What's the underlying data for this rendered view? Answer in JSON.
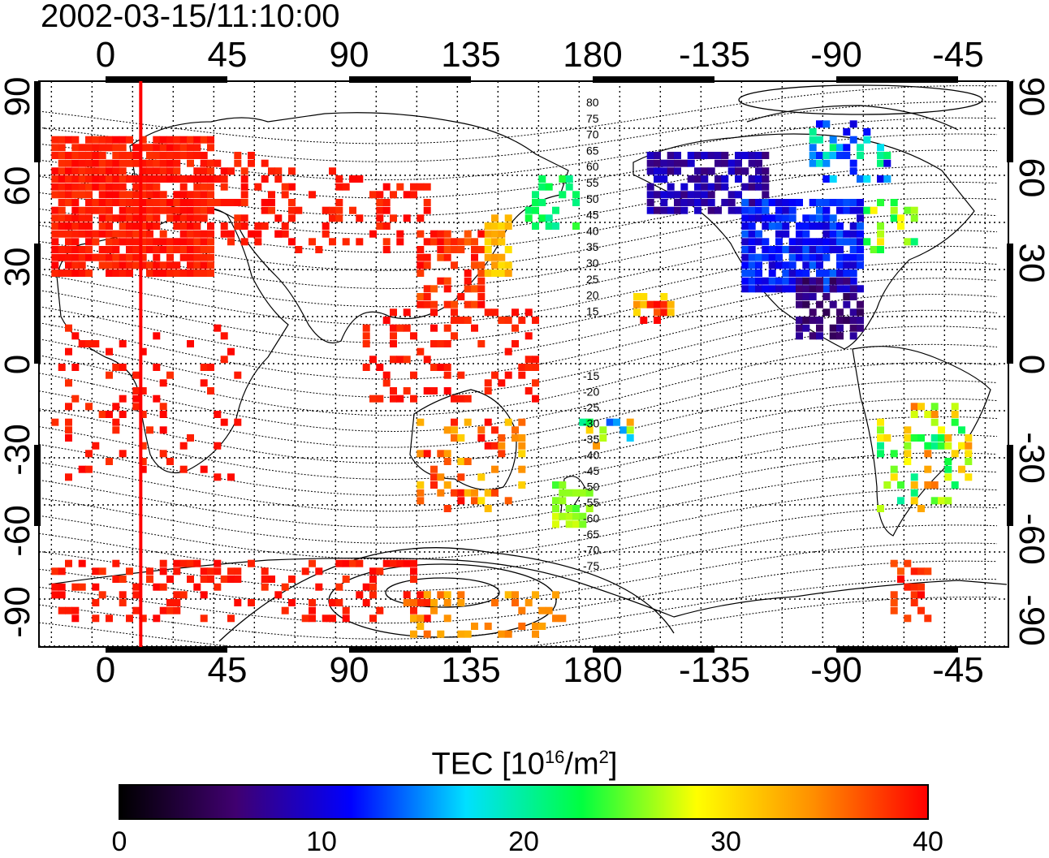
{
  "map": {
    "title": "2002-03-15/11:10:00",
    "lon_ticks": [
      "0",
      "45",
      "90",
      "135",
      "180",
      "-135",
      "-90",
      "-45"
    ],
    "lat_ticks": [
      "90",
      "60",
      "30",
      "0",
      "-30",
      "-60",
      "-90"
    ],
    "contour_labels_north": [
      "80",
      "75",
      "70",
      "65",
      "60",
      "55",
      "50",
      "45",
      "40",
      "35",
      "30",
      "25",
      "20",
      "15"
    ],
    "contour_labels_south": [
      "-15",
      "-20",
      "-25",
      "-30",
      "-35",
      "-40",
      "-45",
      "-50",
      "-55",
      "-60",
      "-65",
      "-70",
      "-75"
    ],
    "terminator_longitude": 13,
    "colors": {
      "high_tec": "#ff1a1a",
      "mid_tec": "#f5a000",
      "low_tec": "#2040ff",
      "terminator": "#ff0000"
    }
  },
  "colorbar": {
    "title": "TEC  [10",
    "title_sup": "16",
    "title_mid": "/m",
    "title_sup2": "2",
    "title_end": "]",
    "min": 0,
    "max": 40,
    "ticks": [
      "0",
      "10",
      "20",
      "30",
      "40"
    ],
    "stops": [
      "#000000",
      "#400070",
      "#0000ff",
      "#00e0ff",
      "#00ff40",
      "#ffff00",
      "#ff9000",
      "#ff0000"
    ]
  }
}
